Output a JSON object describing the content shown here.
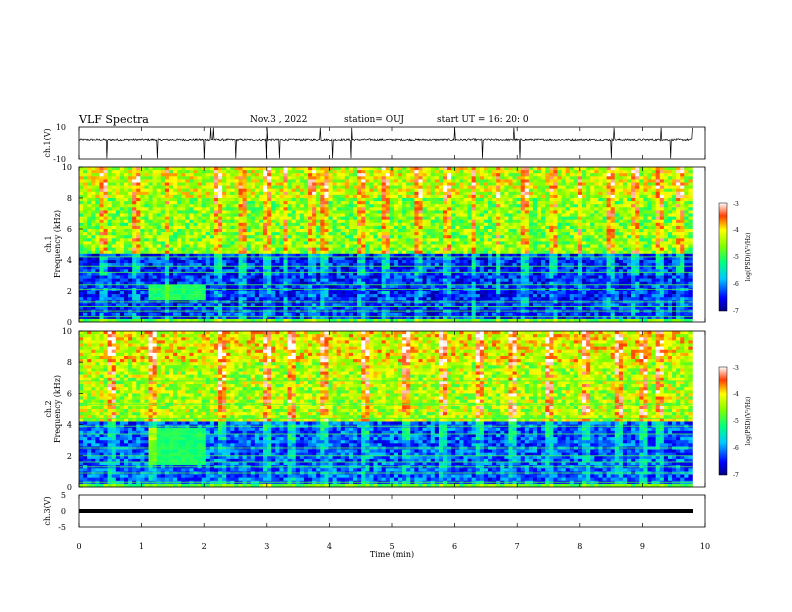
{
  "header": {
    "title": "VLF Spectra",
    "date": "Nov.3 , 2022",
    "station": "station= OUJ",
    "start_ut": "start UT = 16: 20: 0"
  },
  "chart_data": [
    {
      "type": "line",
      "panel": "ch.1 waveform",
      "ylabel": "ch.1(V)",
      "ylim": [
        -10,
        10
      ],
      "yticks": [
        "10",
        "-10"
      ],
      "x_range_min": [
        0,
        10
      ],
      "baseline_v": 2,
      "noise_amp_v": 0.6,
      "spike_times_min": [
        0.45,
        1.25,
        2.0,
        2.1,
        2.15,
        2.5,
        3.0,
        3.2,
        3.85,
        4.05,
        4.35,
        6.0,
        6.45,
        6.95,
        7.05,
        8.5,
        8.55,
        9.3,
        9.45,
        9.8
      ]
    },
    {
      "type": "heatmap",
      "panel": "ch.1 spectrogram",
      "ylabel": "ch.1 Frequency (kHz)",
      "ylim": [
        0,
        10
      ],
      "yticks": [
        "0",
        "2",
        "4",
        "6",
        "8",
        "10"
      ],
      "x_range_min": [
        0,
        10
      ],
      "colorscale_range": [
        -7,
        -3
      ],
      "colorbar_label": "log(PSD)(V²/Hz)",
      "colorbar_ticks": [
        "-3",
        "-4",
        "-5",
        "-6",
        "-7"
      ],
      "features": {
        "upper_band_khz": [
          4.5,
          10
        ],
        "upper_level": -4.6,
        "lower_band_khz": [
          0.3,
          4.5
        ],
        "lower_level": -6.4,
        "enhanced_block_min": [
          1.1,
          2.0
        ],
        "enhanced_block_khz": [
          1.5,
          2.4
        ],
        "horizontal_lines_khz": [
          0.35,
          0.7,
          1.0,
          1.3,
          2.1,
          2.4,
          3.2,
          3.6,
          4.2
        ],
        "vertical_burst_times_min": [
          0.4,
          0.9,
          1.4,
          2.2,
          2.6,
          3.0,
          3.3,
          3.7,
          3.9,
          4.5,
          4.9,
          5.4,
          5.9,
          6.3,
          6.7,
          7.1,
          7.6,
          8.0,
          8.5,
          8.9,
          9.3,
          9.6
        ]
      }
    },
    {
      "type": "heatmap",
      "panel": "ch.2 spectrogram",
      "ylabel": "ch.2 Frequency (kHz)",
      "ylim": [
        0,
        10
      ],
      "yticks": [
        "0",
        "2",
        "4",
        "6",
        "8",
        "10"
      ],
      "x_range_min": [
        0,
        10
      ],
      "colorscale_range": [
        -7,
        -3
      ],
      "colorbar_label": "log(PSD)(V²/Hz)",
      "colorbar_ticks": [
        "-3",
        "-4",
        "-5",
        "-6",
        "-7"
      ],
      "features": {
        "upper_band_khz": [
          4.3,
          10
        ],
        "upper_level": -4.4,
        "lower_band_khz": [
          0.3,
          4.3
        ],
        "lower_level": -6.2,
        "enhanced_block_min": [
          1.1,
          2.0
        ],
        "enhanced_block_khz": [
          1.5,
          3.8
        ],
        "horizontal_lines_khz": [
          0.3,
          0.9,
          1.3,
          1.6,
          2.0,
          2.5,
          3.4,
          3.9,
          4.4,
          5.3,
          6.8
        ],
        "vertical_burst_times_min": [
          0.5,
          1.2,
          2.3,
          3.0,
          3.4,
          3.9,
          4.6,
          5.2,
          5.8,
          6.4,
          6.9,
          7.5,
          8.1,
          8.6,
          9.0,
          9.3
        ]
      }
    },
    {
      "type": "line",
      "panel": "ch.3 waveform",
      "ylabel": "ch.3(V)",
      "ylim": [
        -5,
        5
      ],
      "yticks": [
        "5",
        "0",
        "-5"
      ],
      "x_range_min": [
        0,
        10
      ],
      "constant_v": 0
    }
  ],
  "xaxis": {
    "label": "Time (min)",
    "ticks": [
      "0",
      "1",
      "2",
      "3",
      "4",
      "5",
      "6",
      "7",
      "8",
      "9",
      "10"
    ]
  }
}
